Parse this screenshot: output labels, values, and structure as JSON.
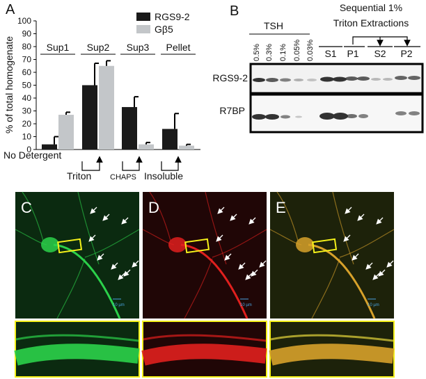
{
  "chart_data": {
    "type": "bar",
    "panel_label": "A",
    "ylabel": "% of total homogenate",
    "categories": [
      "Sup1",
      "Sup2",
      "Sup3",
      "Pellet"
    ],
    "series": [
      {
        "name": "RGS9-2",
        "color": "#1a1a1a",
        "values": [
          4,
          50,
          33,
          16
        ],
        "errors": [
          6,
          17,
          8,
          12
        ]
      },
      {
        "name": "Gβ5",
        "color": "#c3c6c9",
        "values": [
          27,
          65,
          4,
          3
        ],
        "errors": [
          2,
          4,
          1.5,
          1
        ]
      }
    ],
    "ylim": [
      0,
      100
    ],
    "yticks": [
      0,
      10,
      20,
      30,
      40,
      50,
      60,
      70,
      80,
      90,
      100
    ],
    "annotations": [
      "No Detergent",
      "Triton",
      "CHAPS",
      "Insoluble"
    ]
  },
  "blot": {
    "panel_label": "B",
    "tsh_label": "TSH",
    "seq_label": [
      "Sequential 1%",
      "Triton Extractions"
    ],
    "tsh_lanes": [
      "0.5%",
      "0.3%",
      "0.1%",
      "0.05%",
      "0.03%"
    ],
    "seq_lanes": [
      "S1",
      "P1",
      "S2",
      "P2"
    ],
    "rows": [
      "RGS9-2",
      "R7BP"
    ]
  },
  "images": [
    {
      "label": "C",
      "scale": "10 µm"
    },
    {
      "label": "D",
      "scale": "10 µm"
    },
    {
      "label": "E",
      "scale": "10 µm"
    }
  ]
}
